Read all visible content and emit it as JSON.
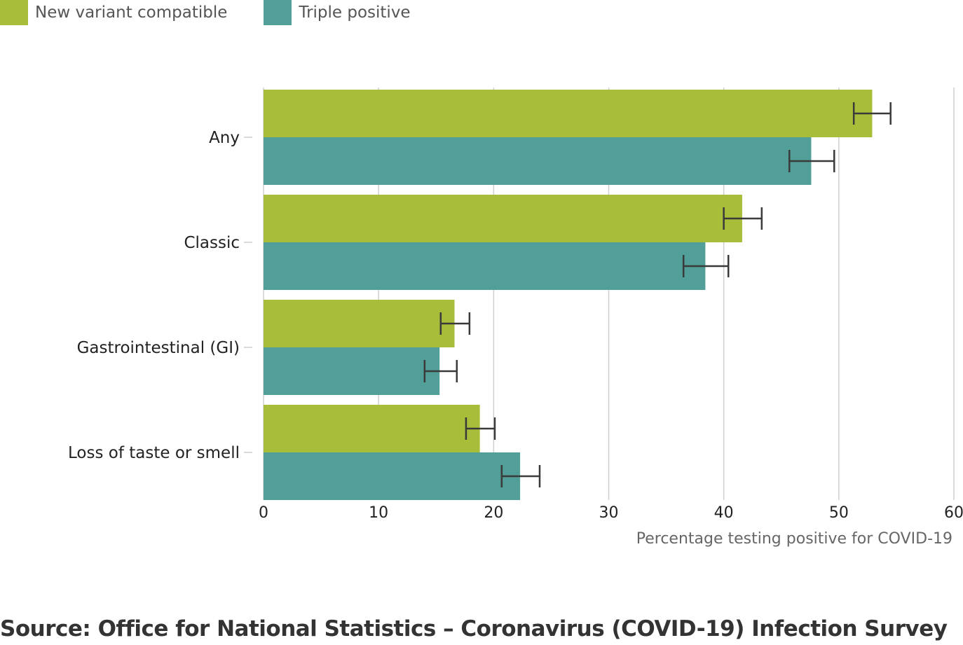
{
  "colors": {
    "new_variant": "#a8bd3a",
    "triple_positive": "#529e98",
    "error_bar": "#3a3a3a",
    "grid": "#cfcfcf",
    "axis_text": "#222222",
    "xlabel_text": "#666666"
  },
  "source_text": "Source: Office for National Statistics – Coronavirus (COVID-19) Infection Survey",
  "chart_data": {
    "type": "bar",
    "orientation": "horizontal",
    "title": "",
    "xlabel": "Percentage testing positive for COVID-19",
    "ylabel": "",
    "xlim": [
      0,
      60
    ],
    "xticks": [
      0,
      10,
      20,
      30,
      40,
      50,
      60
    ],
    "grid": true,
    "legend": "top-left",
    "categories": [
      "Any",
      "Classic",
      "Gastrointestinal (GI)",
      "Loss of taste or smell"
    ],
    "series": [
      {
        "name": "New variant compatible",
        "color_key": "new_variant",
        "values": [
          52.9,
          41.6,
          16.6,
          18.8
        ],
        "error_low": [
          51.3,
          40.0,
          15.4,
          17.6
        ],
        "error_high": [
          54.5,
          43.3,
          17.9,
          20.1
        ]
      },
      {
        "name": "Triple positive",
        "color_key": "triple_positive",
        "values": [
          47.6,
          38.4,
          15.3,
          22.3
        ],
        "error_low": [
          45.7,
          36.5,
          14.0,
          20.7
        ],
        "error_high": [
          49.6,
          40.4,
          16.8,
          24.0
        ]
      }
    ]
  }
}
